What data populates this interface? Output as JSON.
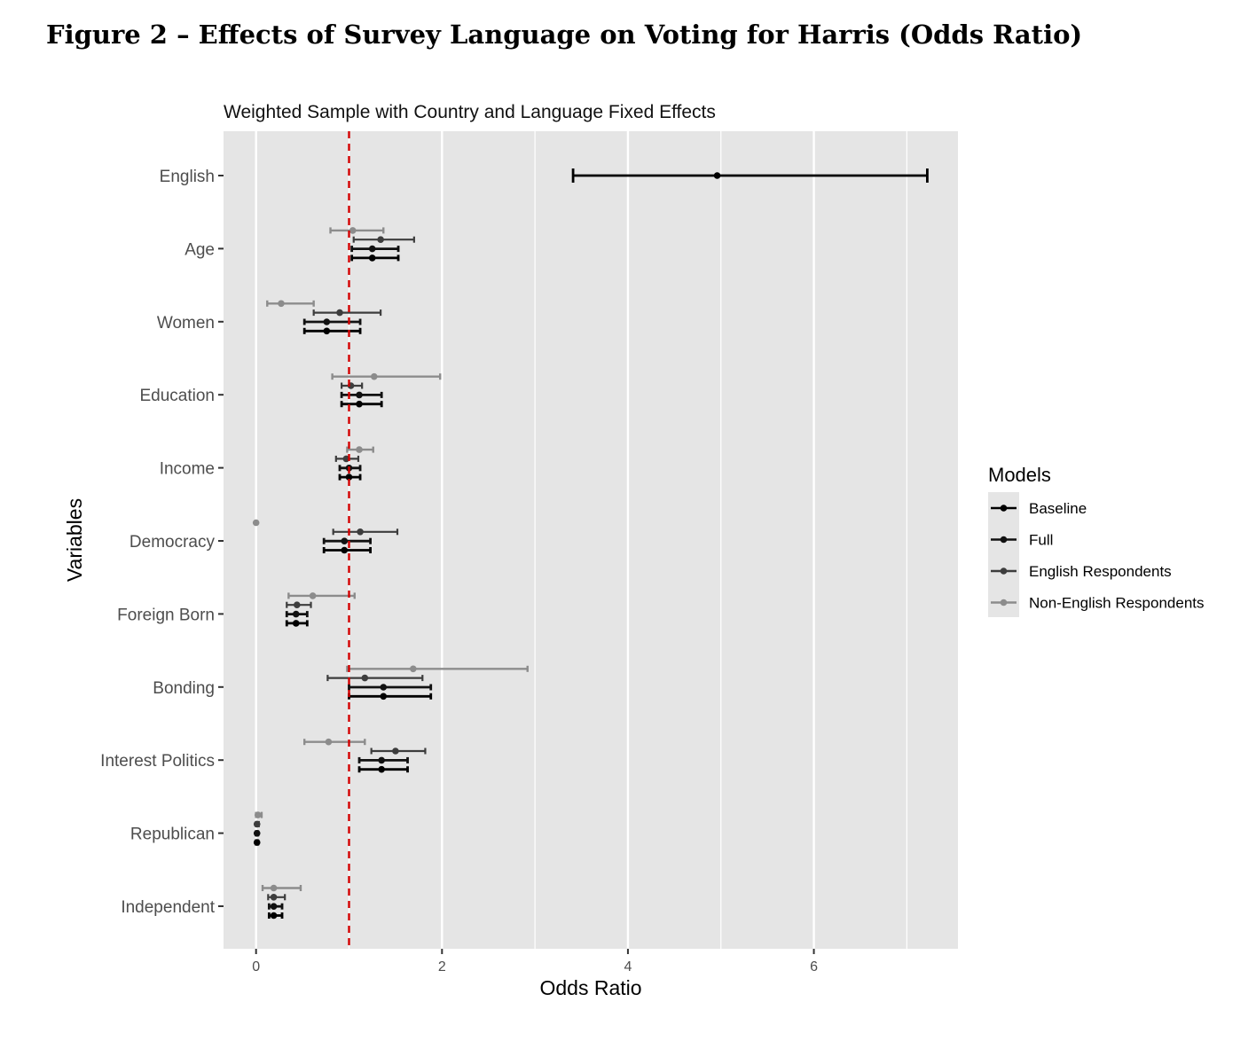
{
  "figure_title": "Figure 2 – Effects of Survey Language on Voting for Harris (Odds Ratio)",
  "colors": {
    "panel": "#e5e5e5",
    "grid": "#ffffff",
    "reference_line": "#d40000",
    "Baseline": "#000000",
    "Full": "#111111",
    "English Respondents": "#3d3d3d",
    "Non-English Respondents": "#8c8c8c"
  },
  "chart_data": {
    "type": "coefficient_plot",
    "title": "Weighted Sample with Country and Language Fixed Effects",
    "xlabel": "Odds Ratio",
    "ylabel": "Variables",
    "xlim": [
      -0.35,
      7.55
    ],
    "xticks": [
      0,
      2,
      4,
      6
    ],
    "xtick_labels": [
      "0",
      "2",
      "4",
      "6"
    ],
    "reference_line": 1,
    "grid": true,
    "legend_title": "Models",
    "legend_position": "right",
    "variables": [
      "English",
      "Age",
      "Women",
      "Education",
      "Income",
      "Democracy",
      "Foreign Born",
      "Bonding",
      "Interest Politics",
      "Republican",
      "Independent"
    ],
    "series": [
      {
        "name": "Non-English Respondents",
        "points": [
          {
            "var": "Age",
            "est": 1.04,
            "lo": 0.8,
            "hi": 1.37
          },
          {
            "var": "Women",
            "est": 0.27,
            "lo": 0.12,
            "hi": 0.62
          },
          {
            "var": "Education",
            "est": 1.27,
            "lo": 0.82,
            "hi": 1.98
          },
          {
            "var": "Income",
            "est": 1.11,
            "lo": 0.98,
            "hi": 1.26
          },
          {
            "var": "Democracy",
            "est": 0.0,
            "lo": 0.0,
            "hi": 0.0
          },
          {
            "var": "Foreign Born",
            "est": 0.61,
            "lo": 0.35,
            "hi": 1.06
          },
          {
            "var": "Bonding",
            "est": 1.69,
            "lo": 0.98,
            "hi": 2.92
          },
          {
            "var": "Interest Politics",
            "est": 0.78,
            "lo": 0.52,
            "hi": 1.17
          },
          {
            "var": "Republican",
            "est": 0.02,
            "lo": 0.0,
            "hi": 0.06
          },
          {
            "var": "Independent",
            "est": 0.19,
            "lo": 0.07,
            "hi": 0.48
          }
        ]
      },
      {
        "name": "English Respondents",
        "points": [
          {
            "var": "Age",
            "est": 1.34,
            "lo": 1.05,
            "hi": 1.7
          },
          {
            "var": "Women",
            "est": 0.9,
            "lo": 0.62,
            "hi": 1.34
          },
          {
            "var": "Education",
            "est": 1.02,
            "lo": 0.92,
            "hi": 1.14
          },
          {
            "var": "Income",
            "est": 0.97,
            "lo": 0.86,
            "hi": 1.1
          },
          {
            "var": "Democracy",
            "est": 1.12,
            "lo": 0.83,
            "hi": 1.52
          },
          {
            "var": "Foreign Born",
            "est": 0.44,
            "lo": 0.33,
            "hi": 0.59
          },
          {
            "var": "Bonding",
            "est": 1.17,
            "lo": 0.77,
            "hi": 1.79
          },
          {
            "var": "Interest Politics",
            "est": 1.5,
            "lo": 1.24,
            "hi": 1.82
          },
          {
            "var": "Republican",
            "est": 0.01,
            "lo": 0.0,
            "hi": 0.03
          },
          {
            "var": "Independent",
            "est": 0.19,
            "lo": 0.13,
            "hi": 0.31
          }
        ]
      },
      {
        "name": "Full",
        "points": [
          {
            "var": "Age",
            "est": 1.25,
            "lo": 1.03,
            "hi": 1.53
          },
          {
            "var": "Women",
            "est": 0.76,
            "lo": 0.52,
            "hi": 1.12
          },
          {
            "var": "Education",
            "est": 1.11,
            "lo": 0.92,
            "hi": 1.35
          },
          {
            "var": "Income",
            "est": 1.0,
            "lo": 0.9,
            "hi": 1.12
          },
          {
            "var": "Democracy",
            "est": 0.95,
            "lo": 0.73,
            "hi": 1.23
          },
          {
            "var": "Foreign Born",
            "est": 0.43,
            "lo": 0.33,
            "hi": 0.55
          },
          {
            "var": "Bonding",
            "est": 1.37,
            "lo": 1.0,
            "hi": 1.88
          },
          {
            "var": "Interest Politics",
            "est": 1.35,
            "lo": 1.11,
            "hi": 1.63
          },
          {
            "var": "Republican",
            "est": 0.01,
            "lo": 0.0,
            "hi": 0.02
          },
          {
            "var": "Independent",
            "est": 0.19,
            "lo": 0.14,
            "hi": 0.28
          }
        ]
      },
      {
        "name": "Baseline",
        "points": [
          {
            "var": "English",
            "est": 4.96,
            "lo": 3.41,
            "hi": 7.22
          },
          {
            "var": "Age",
            "est": 1.25,
            "lo": 1.03,
            "hi": 1.53
          },
          {
            "var": "Women",
            "est": 0.76,
            "lo": 0.52,
            "hi": 1.12
          },
          {
            "var": "Education",
            "est": 1.11,
            "lo": 0.92,
            "hi": 1.35
          },
          {
            "var": "Income",
            "est": 1.0,
            "lo": 0.9,
            "hi": 1.12
          },
          {
            "var": "Democracy",
            "est": 0.95,
            "lo": 0.73,
            "hi": 1.23
          },
          {
            "var": "Foreign Born",
            "est": 0.43,
            "lo": 0.33,
            "hi": 0.55
          },
          {
            "var": "Bonding",
            "est": 1.37,
            "lo": 1.0,
            "hi": 1.88
          },
          {
            "var": "Interest Politics",
            "est": 1.35,
            "lo": 1.11,
            "hi": 1.63
          },
          {
            "var": "Republican",
            "est": 0.01,
            "lo": 0.0,
            "hi": 0.02
          },
          {
            "var": "Independent",
            "est": 0.19,
            "lo": 0.14,
            "hi": 0.28
          }
        ]
      }
    ]
  }
}
